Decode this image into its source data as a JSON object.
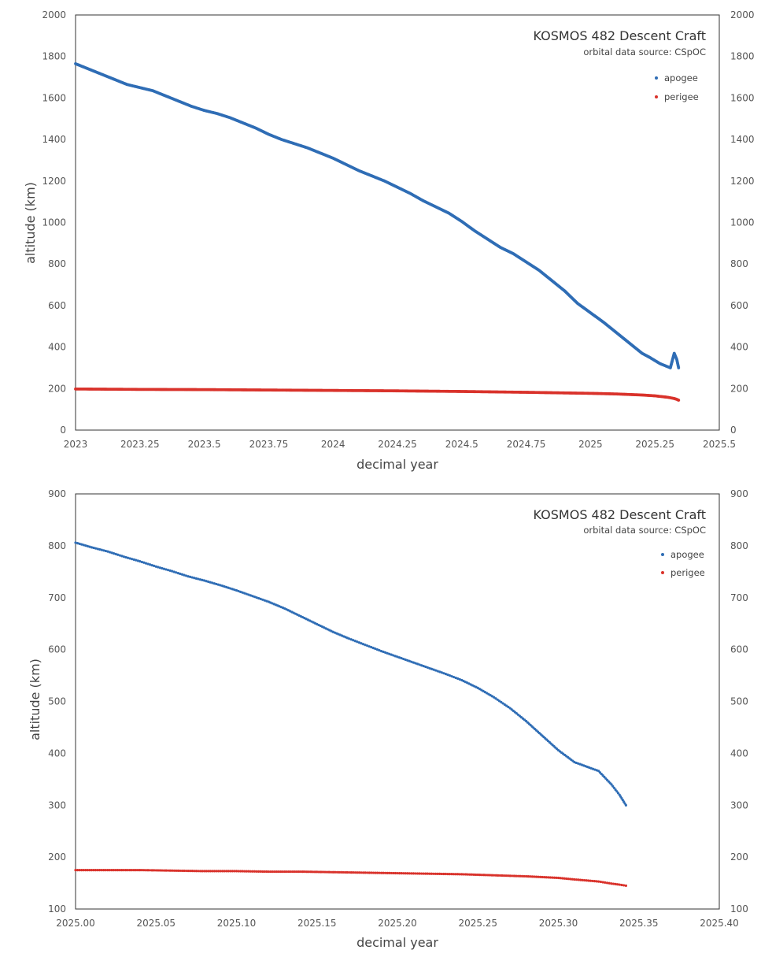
{
  "chart_data": [
    {
      "type": "scatter",
      "title": "KOSMOS 482 Descent Craft",
      "subtitle": "orbital data source:  CSpOC",
      "xlabel": "decimal year",
      "ylabel": "altitude (km)",
      "xlim": [
        2023,
        2025.5
      ],
      "ylim": [
        0,
        2000
      ],
      "xticks": [
        2023,
        2023.25,
        2023.5,
        2023.75,
        2024,
        2024.25,
        2024.5,
        2024.75,
        2025,
        2025.25,
        2025.5
      ],
      "xtick_labels": [
        "2023",
        "2023.25",
        "2023.5",
        "2023.75",
        "2024",
        "2024.25",
        "2024.5",
        "2024.75",
        "2025",
        "2025.25",
        "2025.5"
      ],
      "yticks": [
        0,
        200,
        400,
        600,
        800,
        1000,
        1200,
        1400,
        1600,
        1800,
        2000
      ],
      "ytick_labels": [
        "0",
        "200",
        "400",
        "600",
        "800",
        "1000",
        "1200",
        "1400",
        "1600",
        "1800",
        "2000"
      ],
      "y_axis_right_mirrored": true,
      "grid": false,
      "legend_position": "top-right",
      "series": [
        {
          "name": "apogee",
          "color": "#2f6db5",
          "points": [
            [
              2023.0,
              1765
            ],
            [
              2023.05,
              1740
            ],
            [
              2023.1,
              1715
            ],
            [
              2023.15,
              1690
            ],
            [
              2023.2,
              1665
            ],
            [
              2023.25,
              1650
            ],
            [
              2023.3,
              1635
            ],
            [
              2023.35,
              1610
            ],
            [
              2023.4,
              1585
            ],
            [
              2023.45,
              1560
            ],
            [
              2023.5,
              1540
            ],
            [
              2023.55,
              1525
            ],
            [
              2023.6,
              1505
            ],
            [
              2023.65,
              1480
            ],
            [
              2023.7,
              1455
            ],
            [
              2023.75,
              1425
            ],
            [
              2023.8,
              1400
            ],
            [
              2023.85,
              1380
            ],
            [
              2023.9,
              1360
            ],
            [
              2023.95,
              1335
            ],
            [
              2024.0,
              1310
            ],
            [
              2024.05,
              1280
            ],
            [
              2024.1,
              1250
            ],
            [
              2024.15,
              1225
            ],
            [
              2024.2,
              1200
            ],
            [
              2024.25,
              1170
            ],
            [
              2024.3,
              1140
            ],
            [
              2024.35,
              1105
            ],
            [
              2024.4,
              1075
            ],
            [
              2024.45,
              1045
            ],
            [
              2024.5,
              1005
            ],
            [
              2024.55,
              960
            ],
            [
              2024.6,
              920
            ],
            [
              2024.65,
              880
            ],
            [
              2024.7,
              850
            ],
            [
              2024.75,
              810
            ],
            [
              2024.8,
              770
            ],
            [
              2024.85,
              720
            ],
            [
              2024.9,
              670
            ],
            [
              2024.95,
              610
            ],
            [
              2025.0,
              565
            ],
            [
              2025.05,
              520
            ],
            [
              2025.1,
              470
            ],
            [
              2025.15,
              420
            ],
            [
              2025.2,
              370
            ],
            [
              2025.23,
              350
            ],
            [
              2025.25,
              335
            ],
            [
              2025.27,
              320
            ],
            [
              2025.29,
              310
            ],
            [
              2025.31,
              300
            ],
            [
              2025.325,
              370
            ],
            [
              2025.335,
              340
            ],
            [
              2025.342,
              300
            ]
          ]
        },
        {
          "name": "perigee",
          "color": "#d9322b",
          "points": [
            [
              2023.0,
              198
            ],
            [
              2023.25,
              196
            ],
            [
              2023.5,
              195
            ],
            [
              2023.75,
              193
            ],
            [
              2024.0,
              191
            ],
            [
              2024.25,
              189
            ],
            [
              2024.5,
              186
            ],
            [
              2024.75,
              182
            ],
            [
              2025.0,
              177
            ],
            [
              2025.1,
              174
            ],
            [
              2025.2,
              169
            ],
            [
              2025.25,
              165
            ],
            [
              2025.3,
              158
            ],
            [
              2025.325,
              152
            ],
            [
              2025.335,
              148
            ],
            [
              2025.342,
              144
            ]
          ]
        }
      ]
    },
    {
      "type": "scatter",
      "title": "KOSMOS 482 Descent Craft",
      "subtitle": "orbital data source:  CSpOC",
      "xlabel": "decimal year",
      "ylabel": "altitude (km)",
      "xlim": [
        2025.0,
        2025.4
      ],
      "ylim": [
        100,
        900
      ],
      "xticks": [
        2025.0,
        2025.05,
        2025.1,
        2025.15,
        2025.2,
        2025.25,
        2025.3,
        2025.35,
        2025.4
      ],
      "xtick_labels": [
        "2025.00",
        "2025.05",
        "2025.10",
        "2025.15",
        "2025.20",
        "2025.25",
        "2025.30",
        "2025.35",
        "2025.40"
      ],
      "yticks": [
        100,
        200,
        300,
        400,
        500,
        600,
        700,
        800,
        900
      ],
      "ytick_labels": [
        "100",
        "200",
        "300",
        "400",
        "500",
        "600",
        "700",
        "800",
        "900"
      ],
      "y_axis_right_mirrored": true,
      "grid": false,
      "legend_position": "top-right",
      "series": [
        {
          "name": "apogee",
          "color": "#2f6db5",
          "points": [
            [
              2025.0,
              806
            ],
            [
              2025.01,
              797
            ],
            [
              2025.02,
              789
            ],
            [
              2025.03,
              779
            ],
            [
              2025.04,
              770
            ],
            [
              2025.05,
              760
            ],
            [
              2025.06,
              751
            ],
            [
              2025.07,
              741
            ],
            [
              2025.08,
              733
            ],
            [
              2025.09,
              724
            ],
            [
              2025.1,
              714
            ],
            [
              2025.11,
              703
            ],
            [
              2025.12,
              692
            ],
            [
              2025.13,
              679
            ],
            [
              2025.14,
              664
            ],
            [
              2025.15,
              649
            ],
            [
              2025.16,
              634
            ],
            [
              2025.17,
              621
            ],
            [
              2025.18,
              609
            ],
            [
              2025.19,
              597
            ],
            [
              2025.2,
              586
            ],
            [
              2025.21,
              575
            ],
            [
              2025.22,
              564
            ],
            [
              2025.23,
              553
            ],
            [
              2025.24,
              541
            ],
            [
              2025.25,
              526
            ],
            [
              2025.26,
              508
            ],
            [
              2025.27,
              487
            ],
            [
              2025.28,
              462
            ],
            [
              2025.29,
              434
            ],
            [
              2025.3,
              406
            ],
            [
              2025.31,
              383
            ],
            [
              2025.325,
              366
            ],
            [
              2025.333,
              340
            ],
            [
              2025.338,
              320
            ],
            [
              2025.342,
              300
            ]
          ]
        },
        {
          "name": "perigee",
          "color": "#d9322b",
          "points": [
            [
              2025.0,
              175
            ],
            [
              2025.02,
              175
            ],
            [
              2025.04,
              175
            ],
            [
              2025.06,
              174
            ],
            [
              2025.08,
              173
            ],
            [
              2025.1,
              173
            ],
            [
              2025.12,
              172
            ],
            [
              2025.14,
              172
            ],
            [
              2025.16,
              171
            ],
            [
              2025.18,
              170
            ],
            [
              2025.2,
              169
            ],
            [
              2025.22,
              168
            ],
            [
              2025.24,
              167
            ],
            [
              2025.26,
              165
            ],
            [
              2025.28,
              163
            ],
            [
              2025.3,
              160
            ],
            [
              2025.31,
              157
            ],
            [
              2025.325,
              153
            ],
            [
              2025.333,
              149
            ],
            [
              2025.338,
              147
            ],
            [
              2025.342,
              145
            ]
          ]
        }
      ]
    }
  ]
}
